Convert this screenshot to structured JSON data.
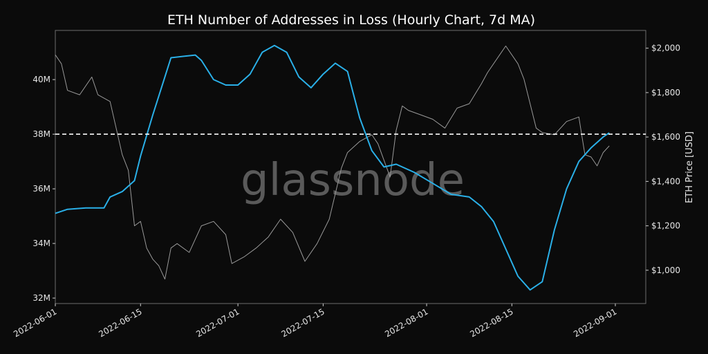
{
  "chart_data": {
    "type": "line",
    "title": "ETH Number of Addresses in Loss (Hourly Chart, 7d MA)",
    "y_right_label": "ETH Price [USD]",
    "watermark": "glassnode",
    "x_ticks": [
      "2022-06-01",
      "2022-06-15",
      "2022-07-01",
      "2022-07-15",
      "2022-08-01",
      "2022-08-15",
      "2022-09-01"
    ],
    "y_left_ticks": [
      {
        "value": 32000000,
        "label": "32M"
      },
      {
        "value": 34000000,
        "label": "34M"
      },
      {
        "value": 36000000,
        "label": "36M"
      },
      {
        "value": 38000000,
        "label": "38M"
      },
      {
        "value": 40000000,
        "label": "40M"
      }
    ],
    "y_right_ticks": [
      {
        "value": 1000,
        "label": "$1,000"
      },
      {
        "value": 1200,
        "label": "$1,200"
      },
      {
        "value": 1400,
        "label": "$1,400"
      },
      {
        "value": 1600,
        "label": "$1,600"
      },
      {
        "value": 1800,
        "label": "$1,800"
      },
      {
        "value": 2000,
        "label": "$2,000"
      }
    ],
    "x_range": [
      "2022-06-01",
      "2022-09-06"
    ],
    "y_left_range": [
      31800000,
      41800000
    ],
    "y_right_range": [
      850000,
      2080000
    ],
    "y_right_range_units": 1000,
    "reference_line": {
      "axis": "left",
      "value": 38000000,
      "style": "dashed",
      "color": "#ffffff"
    },
    "series": [
      {
        "axis": "left",
        "color": "#2ab0e8",
        "x": [
          "2022-06-01",
          "2022-06-03",
          "2022-06-06",
          "2022-06-09",
          "2022-06-10",
          "2022-06-12",
          "2022-06-14",
          "2022-06-15",
          "2022-06-17",
          "2022-06-19",
          "2022-06-20",
          "2022-06-22",
          "2022-06-24",
          "2022-06-25",
          "2022-06-27",
          "2022-06-29",
          "2022-07-01",
          "2022-07-03",
          "2022-07-05",
          "2022-07-07",
          "2022-07-09",
          "2022-07-11",
          "2022-07-13",
          "2022-07-15",
          "2022-07-17",
          "2022-07-19",
          "2022-07-21",
          "2022-07-23",
          "2022-07-25",
          "2022-07-27",
          "2022-07-30",
          "2022-08-02",
          "2022-08-05",
          "2022-08-08",
          "2022-08-10",
          "2022-08-12",
          "2022-08-14",
          "2022-08-16",
          "2022-08-18",
          "2022-08-20",
          "2022-08-22",
          "2022-08-24",
          "2022-08-26",
          "2022-08-28",
          "2022-08-30",
          "2022-08-31"
        ],
        "y": [
          35100000,
          35250000,
          35300000,
          35300000,
          35700000,
          35900000,
          36300000,
          37200000,
          38700000,
          40100000,
          40800000,
          40850000,
          40900000,
          40700000,
          40000000,
          39800000,
          39800000,
          40200000,
          41000000,
          41250000,
          41000000,
          40100000,
          39700000,
          40200000,
          40600000,
          40300000,
          38600000,
          37400000,
          36800000,
          36900000,
          36600000,
          36200000,
          35800000,
          35700000,
          35350000,
          34800000,
          33800000,
          32800000,
          32300000,
          32600000,
          34500000,
          36000000,
          37000000,
          37500000,
          37900000,
          38050000
        ]
      },
      {
        "axis": "right",
        "color": "#9a9a9a",
        "x": [
          "2022-06-01",
          "2022-06-02",
          "2022-06-03",
          "2022-06-05",
          "2022-06-07",
          "2022-06-08",
          "2022-06-10",
          "2022-06-12",
          "2022-06-13",
          "2022-06-14",
          "2022-06-15",
          "2022-06-16",
          "2022-06-17",
          "2022-06-18",
          "2022-06-19",
          "2022-06-20",
          "2022-06-21",
          "2022-06-23",
          "2022-06-25",
          "2022-06-27",
          "2022-06-29",
          "2022-06-30",
          "2022-07-02",
          "2022-07-04",
          "2022-07-06",
          "2022-07-08",
          "2022-07-10",
          "2022-07-12",
          "2022-07-14",
          "2022-07-16",
          "2022-07-18",
          "2022-07-19",
          "2022-07-21",
          "2022-07-23",
          "2022-07-24",
          "2022-07-26",
          "2022-07-27",
          "2022-07-28",
          "2022-07-29",
          "2022-07-31",
          "2022-08-02",
          "2022-08-04",
          "2022-08-06",
          "2022-08-08",
          "2022-08-10",
          "2022-08-11",
          "2022-08-13",
          "2022-08-14",
          "2022-08-16",
          "2022-08-17",
          "2022-08-19",
          "2022-08-20",
          "2022-08-22",
          "2022-08-24",
          "2022-08-26",
          "2022-08-27",
          "2022-08-28",
          "2022-08-29",
          "2022-08-30",
          "2022-08-31"
        ],
        "y": [
          1970,
          1930,
          1810,
          1790,
          1870,
          1790,
          1760,
          1520,
          1450,
          1200,
          1220,
          1100,
          1050,
          1020,
          960,
          1100,
          1120,
          1080,
          1200,
          1220,
          1160,
          1030,
          1060,
          1100,
          1150,
          1230,
          1170,
          1040,
          1120,
          1230,
          1460,
          1530,
          1580,
          1610,
          1570,
          1420,
          1630,
          1740,
          1720,
          1700,
          1680,
          1640,
          1730,
          1750,
          1840,
          1890,
          1970,
          2010,
          1930,
          1860,
          1640,
          1620,
          1610,
          1670,
          1690,
          1520,
          1510,
          1470,
          1530,
          1560
        ]
      }
    ]
  }
}
